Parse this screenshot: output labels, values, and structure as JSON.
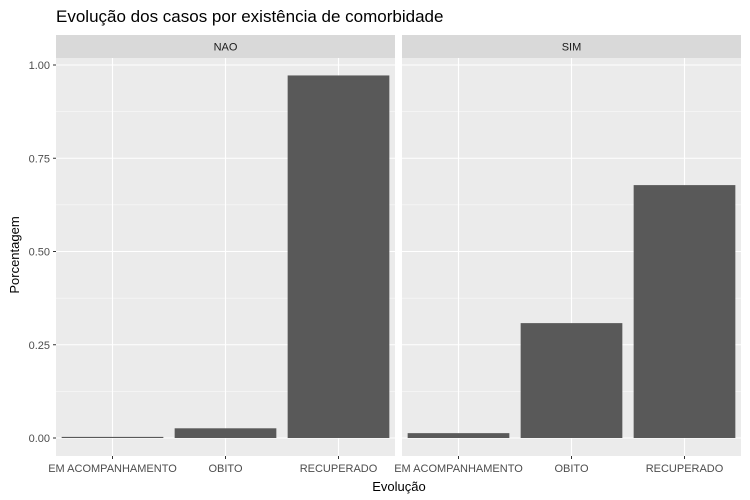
{
  "chart_data": {
    "type": "bar",
    "title": "Evolução dos casos por existência de comorbidade",
    "xlabel": "Evolução",
    "ylabel": "Porcentagem",
    "categories": [
      "EM ACOMPANHAMENTO",
      "OBITO",
      "RECUPERADO"
    ],
    "facets": [
      {
        "name": "NAO",
        "values": [
          0.003,
          0.026,
          0.972
        ]
      },
      {
        "name": "SIM",
        "values": [
          0.013,
          0.308,
          0.678
        ]
      }
    ],
    "y_ticks": [
      0.0,
      0.25,
      0.5,
      0.75,
      1.0
    ],
    "y_tick_labels": [
      "0.00",
      "0.25",
      "0.50",
      "0.75",
      "1.00"
    ],
    "ylim": [
      -0.05,
      1.05
    ],
    "grid": true,
    "colors": {
      "bar": "#595959",
      "panel_bg": "#ebebeb",
      "strip_bg": "#d9d9d9",
      "grid": "#ffffff"
    }
  }
}
